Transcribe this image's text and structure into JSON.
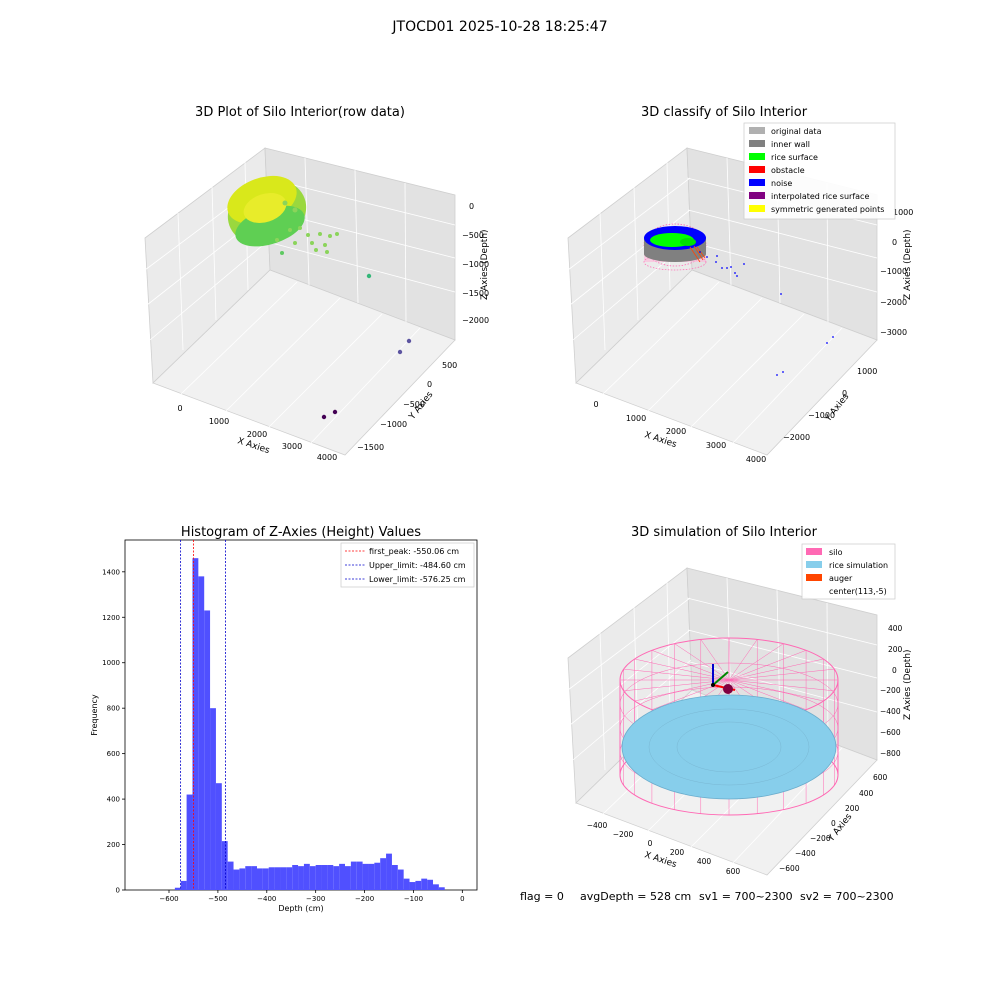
{
  "figure": {
    "suptitle": "JTOCD01 2025-10-28 18:25:47",
    "status": {
      "flag": "flag = 0",
      "avg_depth": "avgDepth = 528 cm",
      "sv1": "sv1 = 700~2300",
      "sv2": "sv2 = 700~2300"
    }
  },
  "colors": {
    "hist_bar": "#5050ff",
    "first_peak_line": "#ff0000",
    "limit_line": "#0000cc",
    "silo": "#ff69b4",
    "rice_sim": "#87ceeb",
    "auger": "#ff4500",
    "original": "#b0b0b0",
    "inner_wall": "#808080",
    "rice_surface": "#00ff00",
    "obstacle": "#ff0000",
    "noise": "#0000ff",
    "interpolated": "#800080",
    "symmetric": "#ffff00"
  },
  "chart_data": [
    {
      "type": "scatter",
      "title": "3D Plot of Silo Interior(row data)",
      "xlabel": "X Axies",
      "ylabel": "Y Axies",
      "zlabel": "Z Axies (Depth)",
      "x_ticks": [
        "0",
        "1000",
        "2000",
        "3000",
        "4000"
      ],
      "y_ticks": [
        "500",
        "0",
        "−500",
        "−1000",
        "−1500"
      ],
      "z_ticks": [
        "0",
        "−500",
        "−1000",
        "−1500",
        "−2000"
      ],
      "zlim": [
        -2300,
        100
      ]
    },
    {
      "type": "scatter",
      "title": "3D classify of Silo Interior",
      "xlabel": "X Axies",
      "ylabel": "Y Axies",
      "zlabel": "Z Axies (Depth)",
      "x_ticks": [
        "0",
        "1000",
        "2000",
        "3000",
        "4000"
      ],
      "y_ticks": [
        "1000",
        "0",
        "−1000",
        "−2000"
      ],
      "z_ticks": [
        "1000",
        "0",
        "−1000",
        "−2000",
        "−3000"
      ],
      "legend": [
        "original data",
        "inner wall",
        "rice surface",
        "obstacle",
        "noise",
        "interpolated rice surface",
        "symmetric generated points"
      ],
      "legend_position": "top-right"
    },
    {
      "type": "bar",
      "title": "Histogram of Z-Axies (Height) Values",
      "xlabel": "Depth (cm)",
      "ylabel": "Frequency",
      "xlim": [
        -690,
        30
      ],
      "ylim": [
        0,
        1540
      ],
      "x_ticks": [
        -600,
        -500,
        -400,
        -300,
        -200,
        -100,
        0
      ],
      "x_tick_labels": [
        "−600",
        "−500",
        "−400",
        "−300",
        "−200",
        "−100",
        "0"
      ],
      "y_ticks": [
        0,
        200,
        400,
        600,
        800,
        1000,
        1200,
        1400
      ],
      "bin_width": 12,
      "bin_start": -588,
      "values": [
        10,
        40,
        420,
        1460,
        1380,
        1230,
        800,
        470,
        215,
        125,
        90,
        95,
        105,
        105,
        95,
        95,
        100,
        100,
        100,
        100,
        110,
        105,
        115,
        105,
        110,
        110,
        110,
        105,
        115,
        105,
        125,
        125,
        115,
        115,
        120,
        140,
        160,
        110,
        90,
        50,
        35,
        40,
        50,
        45,
        25,
        12
      ],
      "lines": [
        {
          "label": "first_peak: -550.06 cm",
          "x": -550.06,
          "color": "#ff0000"
        },
        {
          "label": "Upper_limit: -484.60 cm",
          "x": -484.6,
          "color": "#0000cc"
        },
        {
          "label": "Lower_limit: -576.25 cm",
          "x": -576.25,
          "color": "#0000cc"
        }
      ],
      "legend_position": "top-right"
    },
    {
      "type": "scatter",
      "title": "3D simulation of Silo Interior",
      "xlabel": "X Axies",
      "ylabel": "Y Axies",
      "zlabel": "Z Axies (Depth)",
      "x_ticks": [
        "−400",
        "−200",
        "0",
        "200",
        "400",
        "600"
      ],
      "y_ticks": [
        "600",
        "400",
        "200",
        "0",
        "−200",
        "−400",
        "−600"
      ],
      "z_ticks": [
        "400",
        "200",
        "0",
        "−200",
        "−400",
        "−600",
        "−800"
      ],
      "legend": [
        "silo",
        "rice simulation",
        "auger",
        "center(113,-5)"
      ],
      "legend_position": "top-right"
    }
  ]
}
